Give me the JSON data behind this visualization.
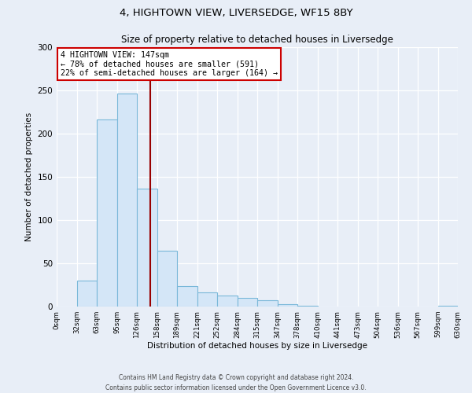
{
  "title": "4, HIGHTOWN VIEW, LIVERSEDGE, WF15 8BY",
  "subtitle": "Size of property relative to detached houses in Liversedge",
  "xlabel": "Distribution of detached houses by size in Liversedge",
  "ylabel": "Number of detached properties",
  "bin_edges": [
    0,
    32,
    63,
    95,
    126,
    158,
    189,
    221,
    252,
    284,
    315,
    347,
    378,
    410,
    441,
    473,
    504,
    536,
    567,
    599,
    630
  ],
  "bar_heights": [
    0,
    30,
    216,
    246,
    136,
    65,
    24,
    16,
    13,
    10,
    7,
    3,
    1,
    0,
    0,
    0,
    0,
    0,
    0,
    1
  ],
  "bar_face_color": "#d4e6f7",
  "bar_edge_color": "#7ab8d9",
  "vline_x": 147,
  "vline_color": "#990000",
  "annotation_line1": "4 HIGHTOWN VIEW: 147sqm",
  "annotation_line2": "← 78% of detached houses are smaller (591)",
  "annotation_line3": "22% of semi-detached houses are larger (164) →",
  "annotation_box_color": "#ffffff",
  "annotation_box_edgecolor": "#cc0000",
  "ylim": [
    0,
    300
  ],
  "yticks": [
    0,
    50,
    100,
    150,
    200,
    250,
    300
  ],
  "background_color": "#e8eef7",
  "plot_bg_color": "#e8eef7",
  "grid_color": "#ffffff",
  "footer_line1": "Contains HM Land Registry data © Crown copyright and database right 2024.",
  "footer_line2": "Contains public sector information licensed under the Open Government Licence v3.0."
}
